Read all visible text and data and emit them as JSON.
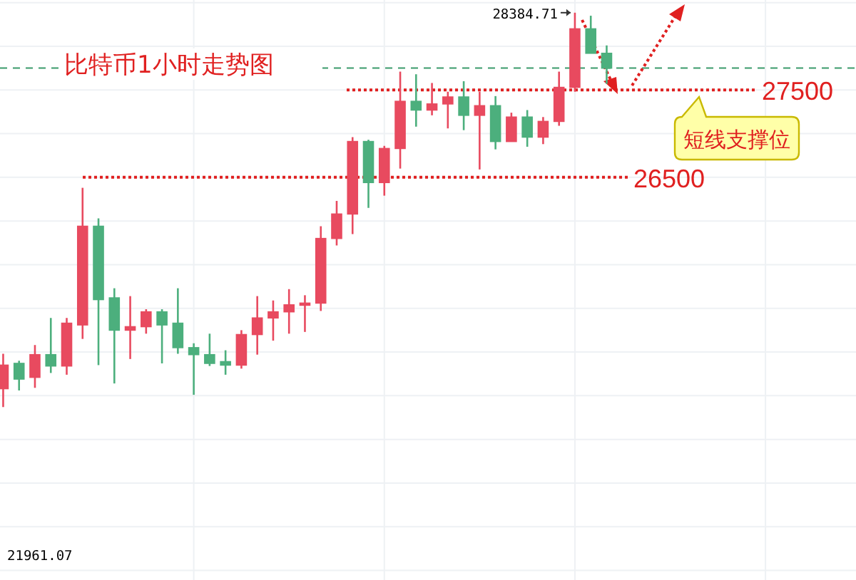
{
  "chart_data": {
    "type": "candlestick",
    "title": "比特币1小时走势图",
    "categories": [
      null,
      null,
      null,
      null,
      null,
      null,
      null,
      null,
      null,
      null,
      null,
      null,
      null,
      null,
      null,
      null,
      null,
      null,
      null,
      null,
      null,
      null,
      null,
      null,
      null,
      null,
      null,
      null,
      null,
      null,
      null,
      null,
      null,
      null,
      null,
      null,
      null,
      null,
      null
    ],
    "ohlc": [
      [
        24080,
        24480,
        23870,
        24350
      ],
      [
        24370,
        24400,
        24060,
        24190
      ],
      [
        24210,
        24580,
        24090,
        24470
      ],
      [
        24470,
        24890,
        24260,
        24340
      ],
      [
        24340,
        24890,
        24240,
        24830
      ],
      [
        24810,
        26380,
        24650,
        25940
      ],
      [
        25940,
        26030,
        24350,
        25100
      ],
      [
        25120,
        25230,
        24140,
        24750
      ],
      [
        24750,
        25140,
        24420,
        24790
      ],
      [
        24790,
        24990,
        24710,
        24960
      ],
      [
        24960,
        24990,
        24370,
        24810
      ],
      [
        24830,
        25230,
        24480,
        24550
      ],
      [
        24550,
        24600,
        24010,
        24470
      ],
      [
        24470,
        24710,
        24340,
        24370
      ],
      [
        24390,
        24520,
        24240,
        24350
      ],
      [
        24350,
        24750,
        24310,
        24700
      ],
      [
        24700,
        25140,
        24470,
        24890
      ],
      [
        24890,
        25090,
        24630,
        24960
      ],
      [
        24960,
        25220,
        24710,
        25040
      ],
      [
        25040,
        25150,
        24730,
        25060
      ],
      [
        25060,
        25940,
        24970,
        25800
      ],
      [
        25800,
        26230,
        25720,
        26080
      ],
      [
        26080,
        26960,
        25850,
        26910
      ],
      [
        26910,
        26930,
        26150,
        26440
      ],
      [
        26440,
        26860,
        26290,
        26830
      ],
      [
        26830,
        27710,
        26600,
        27370
      ],
      [
        27370,
        27680,
        27080,
        27270
      ],
      [
        27270,
        27580,
        27210,
        27340
      ],
      [
        27340,
        27480,
        27060,
        27420
      ],
      [
        27420,
        27600,
        27040,
        27210
      ],
      [
        27210,
        27480,
        26590,
        27320
      ],
      [
        27320,
        27430,
        26820,
        26910
      ],
      [
        26910,
        27240,
        26910,
        27190
      ],
      [
        27190,
        27270,
        26850,
        26960
      ],
      [
        26960,
        27190,
        26880,
        27140
      ],
      [
        27140,
        27710,
        27090,
        27530
      ],
      [
        27530,
        28384.71,
        27480,
        28200
      ],
      [
        28200,
        28350,
        27920,
        27920
      ],
      [
        27920,
        28010,
        27570,
        27750
      ]
    ],
    "colors": [
      "#e84a5f",
      "#4caf7d",
      "#e84a5f",
      "#4caf7d",
      "#e84a5f",
      "#e84a5f",
      "#4caf7d",
      "#4caf7d",
      "#e84a5f",
      "#e84a5f",
      "#4caf7d",
      "#4caf7d",
      "#4caf7d",
      "#4caf7d",
      "#4caf7d",
      "#e84a5f",
      "#e84a5f",
      "#e84a5f",
      "#e84a5f",
      "#e84a5f",
      "#e84a5f",
      "#e84a5f",
      "#e84a5f",
      "#4caf7d",
      "#e84a5f",
      "#e84a5f",
      "#4caf7d",
      "#e84a5f",
      "#e84a5f",
      "#4caf7d",
      "#e84a5f",
      "#4caf7d",
      "#e84a5f",
      "#4caf7d",
      "#e84a5f",
      "#e84a5f",
      "#e84a5f",
      "#4caf7d",
      "#4caf7d"
    ],
    "ylim": [
      21890,
      28530
    ],
    "yticks": [
      {
        "value": 22000,
        "label": null
      },
      {
        "value": 22500,
        "label": null
      },
      {
        "value": 23000,
        "label": null
      },
      {
        "value": 23500,
        "label": null
      },
      {
        "value": 24000,
        "label": null
      },
      {
        "value": 24500,
        "label": null
      },
      {
        "value": 25000,
        "label": null
      },
      {
        "value": 25500,
        "label": null
      },
      {
        "value": 26000,
        "label": null
      },
      {
        "value": 26500,
        "label": null
      },
      {
        "value": 27000,
        "label": null
      },
      {
        "value": 27500,
        "label": null
      },
      {
        "value": 28000,
        "label": null
      },
      {
        "value": 28500,
        "label": null
      }
    ],
    "grid": true,
    "ref_lines": [
      {
        "axis": "y",
        "value": 27500,
        "label": "27500",
        "color": "#e02020",
        "line_style": "dotted"
      },
      {
        "axis": "y",
        "value": 26500,
        "label": "26500",
        "color": "#e02020",
        "line_style": "dotted"
      },
      {
        "axis": "y",
        "value": 27750,
        "color": "#3a9a6a",
        "line_style": "dashed"
      }
    ],
    "annotations": [
      "28384.71",
      "21961.07",
      "短线支撑位"
    ]
  }
}
